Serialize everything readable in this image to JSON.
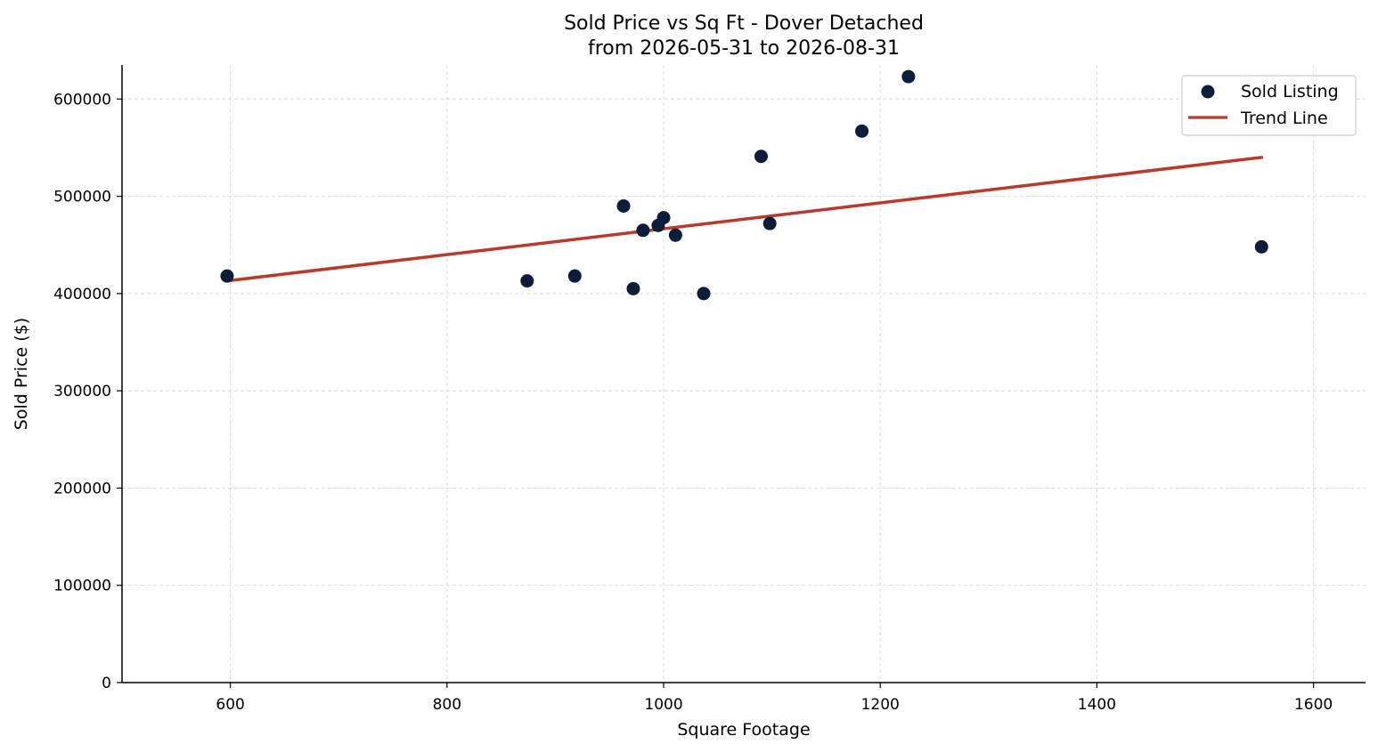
{
  "chart_data": {
    "type": "scatter",
    "title": "Sold Price vs Sq Ft - Dover Detached",
    "subtitle": "from 2026-05-31 to 2026-08-31",
    "xlabel": "Square Footage",
    "ylabel": "Sold Price ($)",
    "xlim": [
      500,
      1648
    ],
    "ylim": [
      0,
      635000
    ],
    "xticks": [
      "600",
      "800",
      "1000",
      "1200",
      "1400",
      "1600"
    ],
    "yticks": [
      "0",
      "100000",
      "200000",
      "300000",
      "400000",
      "500000",
      "600000"
    ],
    "grid": true,
    "legend_position": "top-right",
    "colors": {
      "points": "#0b1d3a",
      "trend": "#b83a2a",
      "grid": "#d8d8d8"
    },
    "series": [
      {
        "name": "Sold Listing",
        "kind": "scatter",
        "points": [
          {
            "x": 597,
            "y": 418000
          },
          {
            "x": 874,
            "y": 413000
          },
          {
            "x": 918,
            "y": 418000
          },
          {
            "x": 963,
            "y": 490000
          },
          {
            "x": 972,
            "y": 405000
          },
          {
            "x": 981,
            "y": 465000
          },
          {
            "x": 995,
            "y": 470000
          },
          {
            "x": 1000,
            "y": 478000
          },
          {
            "x": 1011,
            "y": 460000
          },
          {
            "x": 1037,
            "y": 400000
          },
          {
            "x": 1090,
            "y": 541000
          },
          {
            "x": 1098,
            "y": 472000
          },
          {
            "x": 1183,
            "y": 567000
          },
          {
            "x": 1226,
            "y": 623000
          },
          {
            "x": 1552,
            "y": 448000
          }
        ]
      },
      {
        "name": "Trend Line",
        "kind": "line",
        "points": [
          {
            "x": 597,
            "y": 413000
          },
          {
            "x": 1552,
            "y": 540000
          }
        ]
      }
    ]
  }
}
